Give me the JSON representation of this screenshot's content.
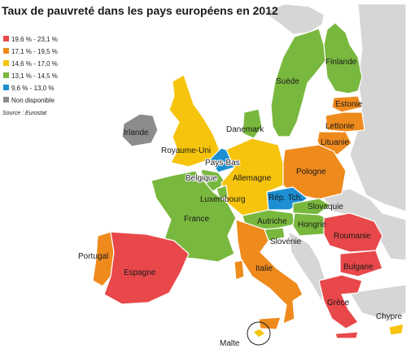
{
  "title": "Taux de pauvreté dans les pays européens en 2012",
  "legend": [
    {
      "label": "19,6 %  -  23,1 %",
      "color": "#e8484a"
    },
    {
      "label": "17,1 %  -  19,5 %",
      "color": "#ef8a1d"
    },
    {
      "label": "14,6 %  -  17,0 %",
      "color": "#f6c40c"
    },
    {
      "label": "13,1 %  -  14,5 %",
      "color": "#79b83e"
    },
    {
      "label": "9,6 %  -  13,0 %",
      "color": "#1b8fd2"
    },
    {
      "label": "Non disponible",
      "color": "#8c8c8c"
    }
  ],
  "source": "Source : Eurostat",
  "countries": {
    "finlande": "Finlande",
    "suede": "Suède",
    "estonie": "Estonie",
    "lettonie": "Lettonie",
    "lituanie": "Lituanie",
    "danemark": "Danemark",
    "irlande": "Irlande",
    "royaume_uni": "Royaume-Uni",
    "pays_bas": "Pays-Bas",
    "belgique": "Belgique",
    "allemagne": "Allemagne",
    "pologne": "Pologne",
    "luxembourg": "Luxembourg",
    "rep_tch": "Rép. Tch.",
    "slovaquie": "Slovaquie",
    "france": "France",
    "autriche": "Autriche",
    "hongrie": "Hongrie",
    "roumanie": "Roumanie",
    "slovenie": "Slovénie",
    "portugal": "Portugal",
    "espagne": "Espagne",
    "italie": "Italie",
    "bulgarie": "Bulgarie",
    "grece": "Grèce",
    "chypre": "Chypre",
    "malte": "Malte"
  }
}
